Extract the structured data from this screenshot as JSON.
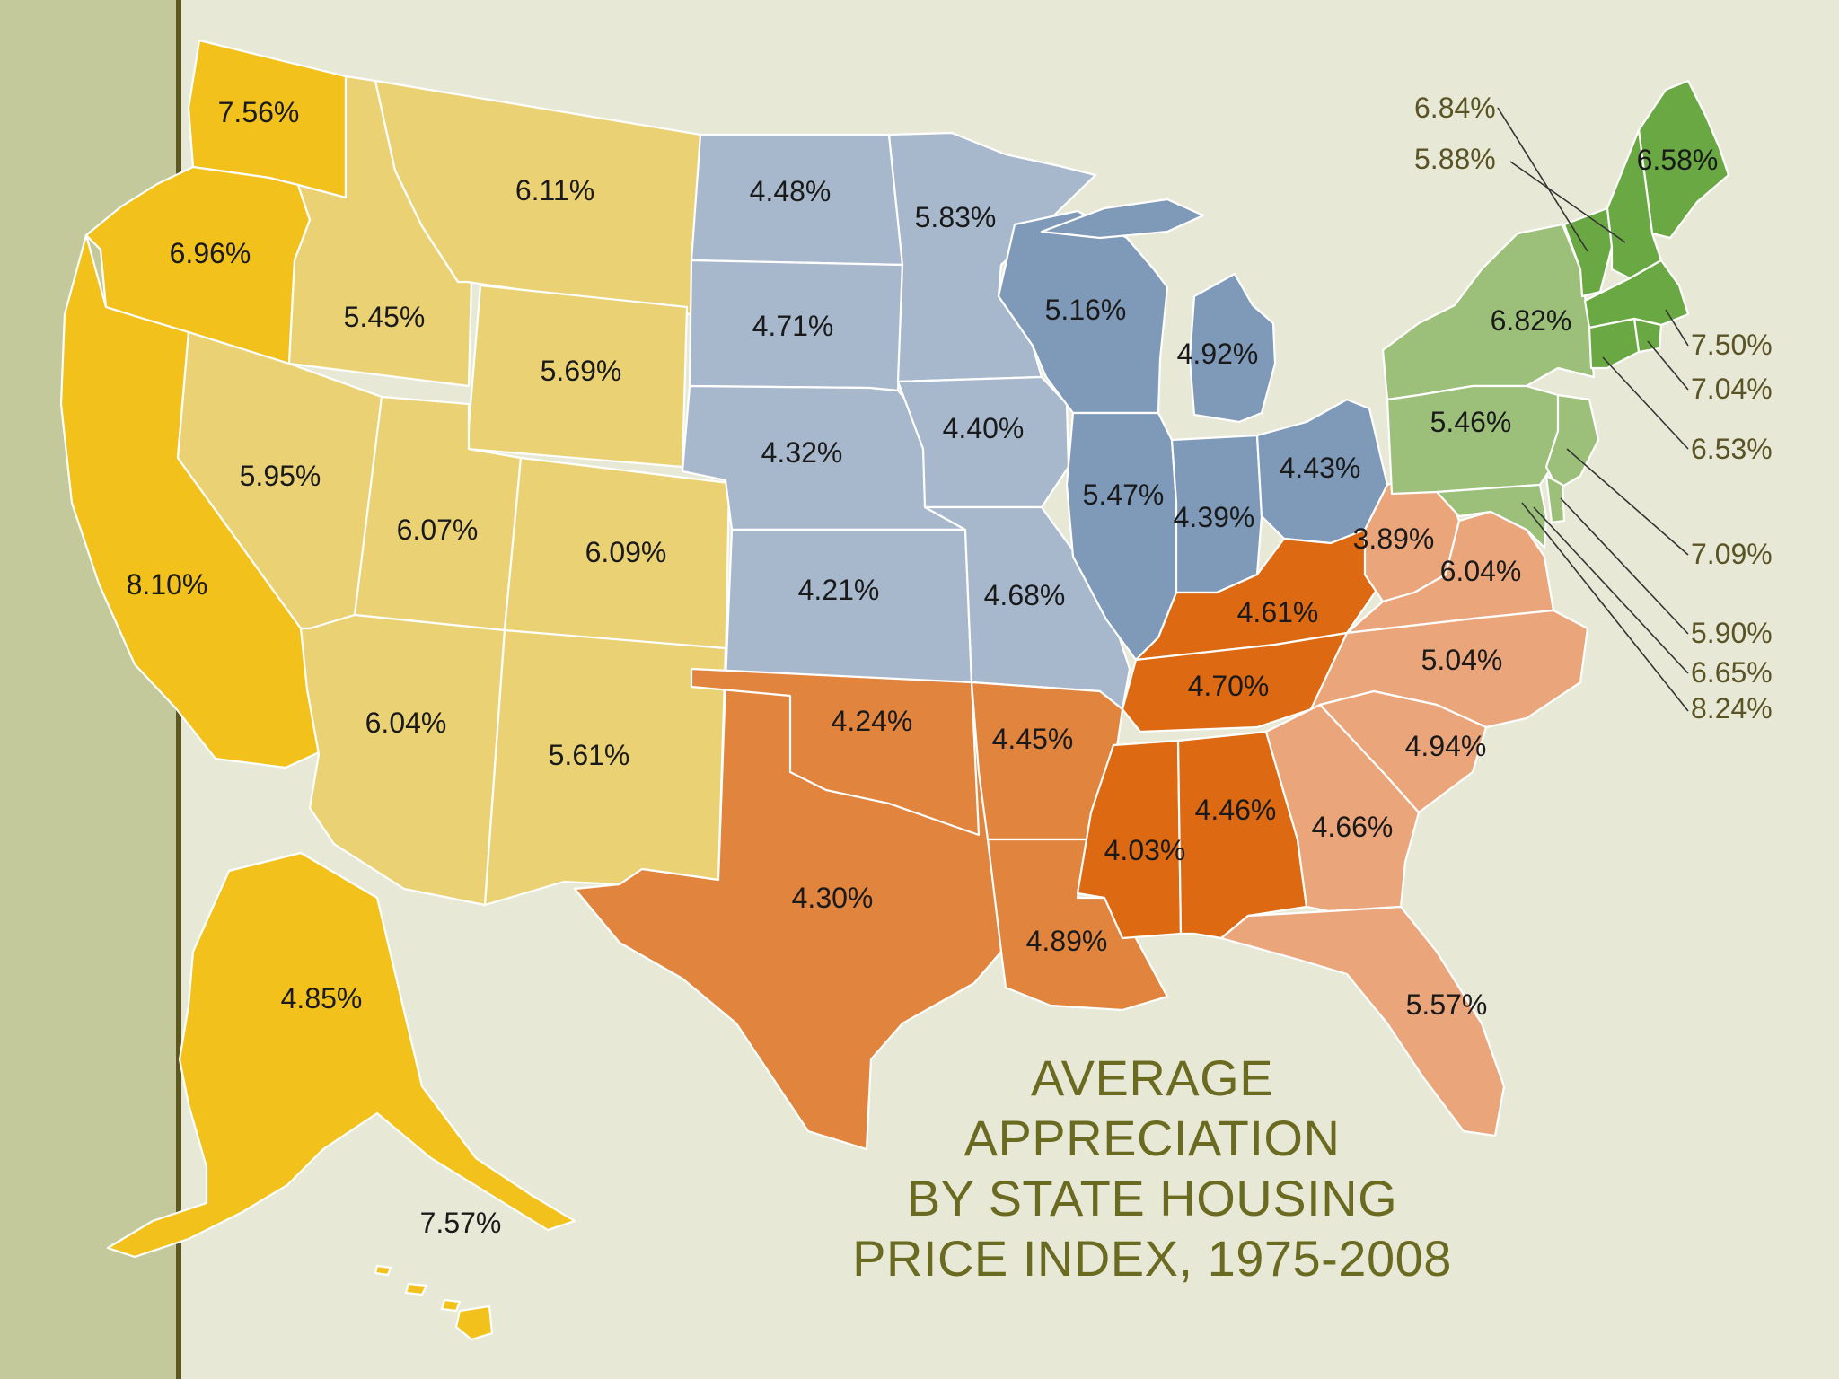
{
  "title_lines": [
    "AVERAGE",
    "APPRECIATION",
    "BY STATE HOUSING",
    "PRICE INDEX, 1975-2008"
  ],
  "colors": {
    "background": "#e7e9d6",
    "left_strip": "#c3c99b",
    "left_line": "#5d5722",
    "west": "#f2c11c",
    "mountain": "#ead173",
    "midwest": "#a8b8cc",
    "great_lakes": "#7f9ab9",
    "south_central": "#e0843e",
    "east_south_central": "#dd6a12",
    "south_atlantic": "#eba57a",
    "mid_atlantic": "#9cc07a",
    "new_england": "#69a842",
    "title": "#6b6a21"
  },
  "states": [
    {
      "id": "WA",
      "value": "7.56%",
      "region": "west"
    },
    {
      "id": "OR",
      "value": "6.96%",
      "region": "west"
    },
    {
      "id": "CA",
      "value": "8.10%",
      "region": "west"
    },
    {
      "id": "AK",
      "value": "4.85%",
      "region": "west"
    },
    {
      "id": "HI",
      "value": "7.57%",
      "region": "west"
    },
    {
      "id": "ID",
      "value": "5.45%",
      "region": "mountain"
    },
    {
      "id": "MT",
      "value": "6.11%",
      "region": "mountain"
    },
    {
      "id": "WY",
      "value": "5.69%",
      "region": "mountain"
    },
    {
      "id": "NV",
      "value": "5.95%",
      "region": "mountain"
    },
    {
      "id": "UT",
      "value": "6.07%",
      "region": "mountain"
    },
    {
      "id": "CO",
      "value": "6.09%",
      "region": "mountain"
    },
    {
      "id": "AZ",
      "value": "6.04%",
      "region": "mountain"
    },
    {
      "id": "NM",
      "value": "5.61%",
      "region": "mountain"
    },
    {
      "id": "ND",
      "value": "4.48%",
      "region": "midwest"
    },
    {
      "id": "SD",
      "value": "4.71%",
      "region": "midwest"
    },
    {
      "id": "NE",
      "value": "4.32%",
      "region": "midwest"
    },
    {
      "id": "KS",
      "value": "4.21%",
      "region": "midwest"
    },
    {
      "id": "MN",
      "value": "5.83%",
      "region": "midwest"
    },
    {
      "id": "IA",
      "value": "4.40%",
      "region": "midwest"
    },
    {
      "id": "MO",
      "value": "4.68%",
      "region": "midwest"
    },
    {
      "id": "WI",
      "value": "5.16%",
      "region": "great_lakes"
    },
    {
      "id": "MI",
      "value": "4.92%",
      "region": "great_lakes"
    },
    {
      "id": "IL",
      "value": "5.47%",
      "region": "great_lakes"
    },
    {
      "id": "IN",
      "value": "4.39%",
      "region": "great_lakes"
    },
    {
      "id": "OH",
      "value": "4.43%",
      "region": "great_lakes"
    },
    {
      "id": "TX",
      "value": "4.30%",
      "region": "south_central"
    },
    {
      "id": "OK",
      "value": "4.24%",
      "region": "south_central"
    },
    {
      "id": "AR",
      "value": "4.45%",
      "region": "south_central"
    },
    {
      "id": "LA",
      "value": "4.89%",
      "region": "south_central"
    },
    {
      "id": "KY",
      "value": "4.61%",
      "region": "east_south_central"
    },
    {
      "id": "TN",
      "value": "4.70%",
      "region": "east_south_central"
    },
    {
      "id": "MS",
      "value": "4.03%",
      "region": "east_south_central"
    },
    {
      "id": "AL",
      "value": "4.46%",
      "region": "east_south_central"
    },
    {
      "id": "WV",
      "value": "3.89%",
      "region": "south_atlantic"
    },
    {
      "id": "VA",
      "value": "6.04%",
      "region": "south_atlantic"
    },
    {
      "id": "NC",
      "value": "5.04%",
      "region": "south_atlantic"
    },
    {
      "id": "SC",
      "value": "4.94%",
      "region": "south_atlantic"
    },
    {
      "id": "GA",
      "value": "4.66%",
      "region": "south_atlantic"
    },
    {
      "id": "FL",
      "value": "5.57%",
      "region": "south_atlantic"
    },
    {
      "id": "NY",
      "value": "6.82%",
      "region": "mid_atlantic"
    },
    {
      "id": "PA",
      "value": "5.46%",
      "region": "mid_atlantic"
    },
    {
      "id": "NJ",
      "value": "7.09%",
      "region": "mid_atlantic"
    },
    {
      "id": "DE",
      "value": "5.90%",
      "region": "mid_atlantic"
    },
    {
      "id": "MD",
      "value": "6.65%",
      "region": "mid_atlantic"
    },
    {
      "id": "DC",
      "value": "8.24%",
      "region": "mid_atlantic"
    },
    {
      "id": "ME",
      "value": "6.58%",
      "region": "new_england"
    },
    {
      "id": "VT",
      "value": "6.84%",
      "region": "new_england"
    },
    {
      "id": "NH",
      "value": "5.88%",
      "region": "new_england"
    },
    {
      "id": "MA",
      "value": "7.50%",
      "region": "new_england"
    },
    {
      "id": "RI",
      "value": "7.04%",
      "region": "new_england"
    },
    {
      "id": "CT",
      "value": "6.53%",
      "region": "new_england"
    }
  ]
}
